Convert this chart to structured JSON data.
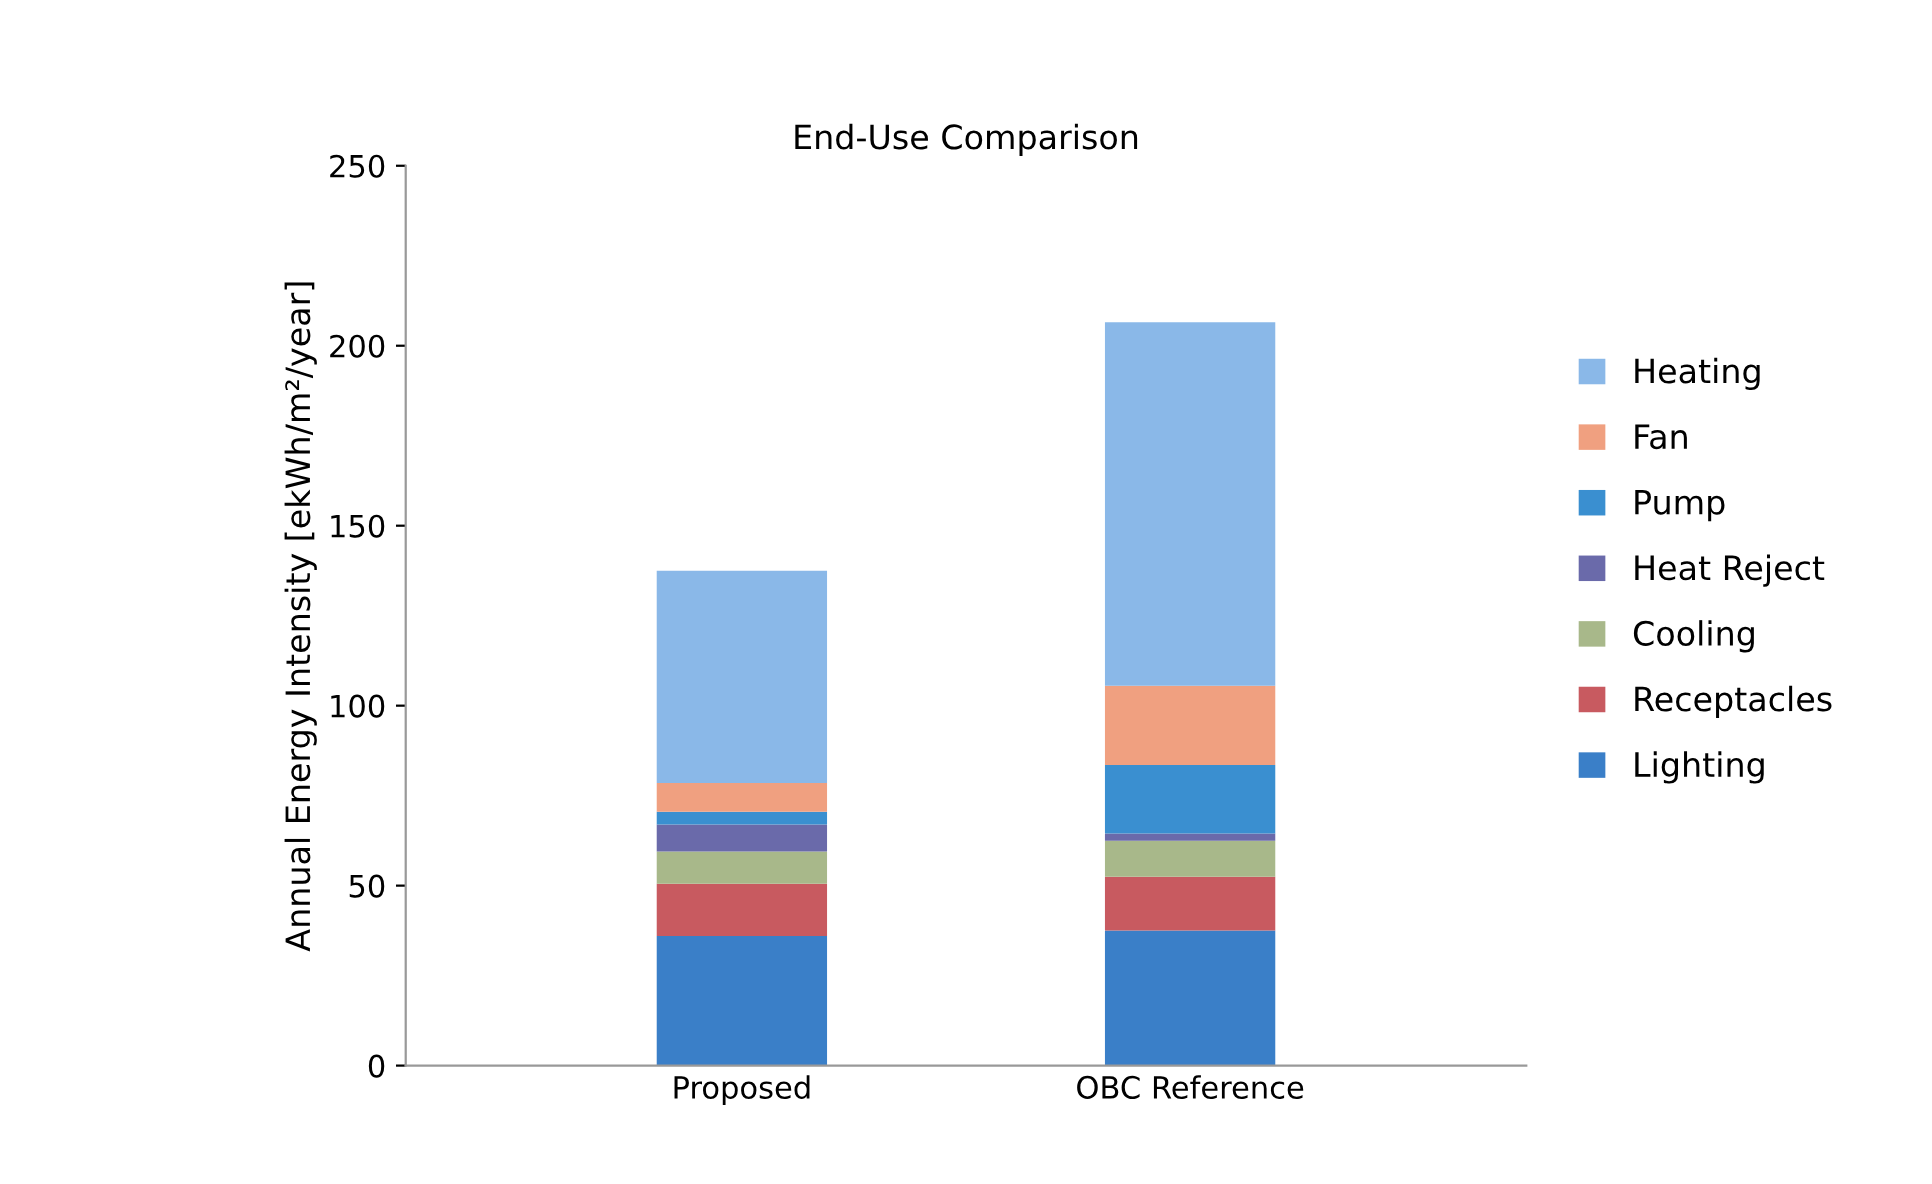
{
  "chart_data": {
    "type": "bar",
    "stacked": true,
    "title": "End-Use Comparison",
    "ylabel": "Annual Energy Intensity [ekWh/m²/year]",
    "categories": [
      "Proposed",
      "OBC Reference"
    ],
    "series": [
      {
        "name": "Lighting",
        "color": "#3a7fc8",
        "values": [
          36,
          37.5
        ]
      },
      {
        "name": "Receptacles",
        "color": "#c85a60",
        "values": [
          14.5,
          15
        ]
      },
      {
        "name": "Cooling",
        "color": "#a8b88a",
        "values": [
          9,
          10
        ]
      },
      {
        "name": "Heat Reject",
        "color": "#6a6aaa",
        "values": [
          7.5,
          2
        ]
      },
      {
        "name": "Pump",
        "color": "#3a8fd0",
        "values": [
          3.5,
          19
        ]
      },
      {
        "name": "Fan",
        "color": "#f0a080",
        "values": [
          8,
          22
        ]
      },
      {
        "name": "Heating",
        "color": "#8ab8e8",
        "values": [
          59,
          101
        ]
      }
    ],
    "ylim": [
      0,
      250
    ],
    "yticks": [
      0,
      50,
      100,
      150,
      200,
      250
    ],
    "grid": false,
    "legend": "right"
  }
}
